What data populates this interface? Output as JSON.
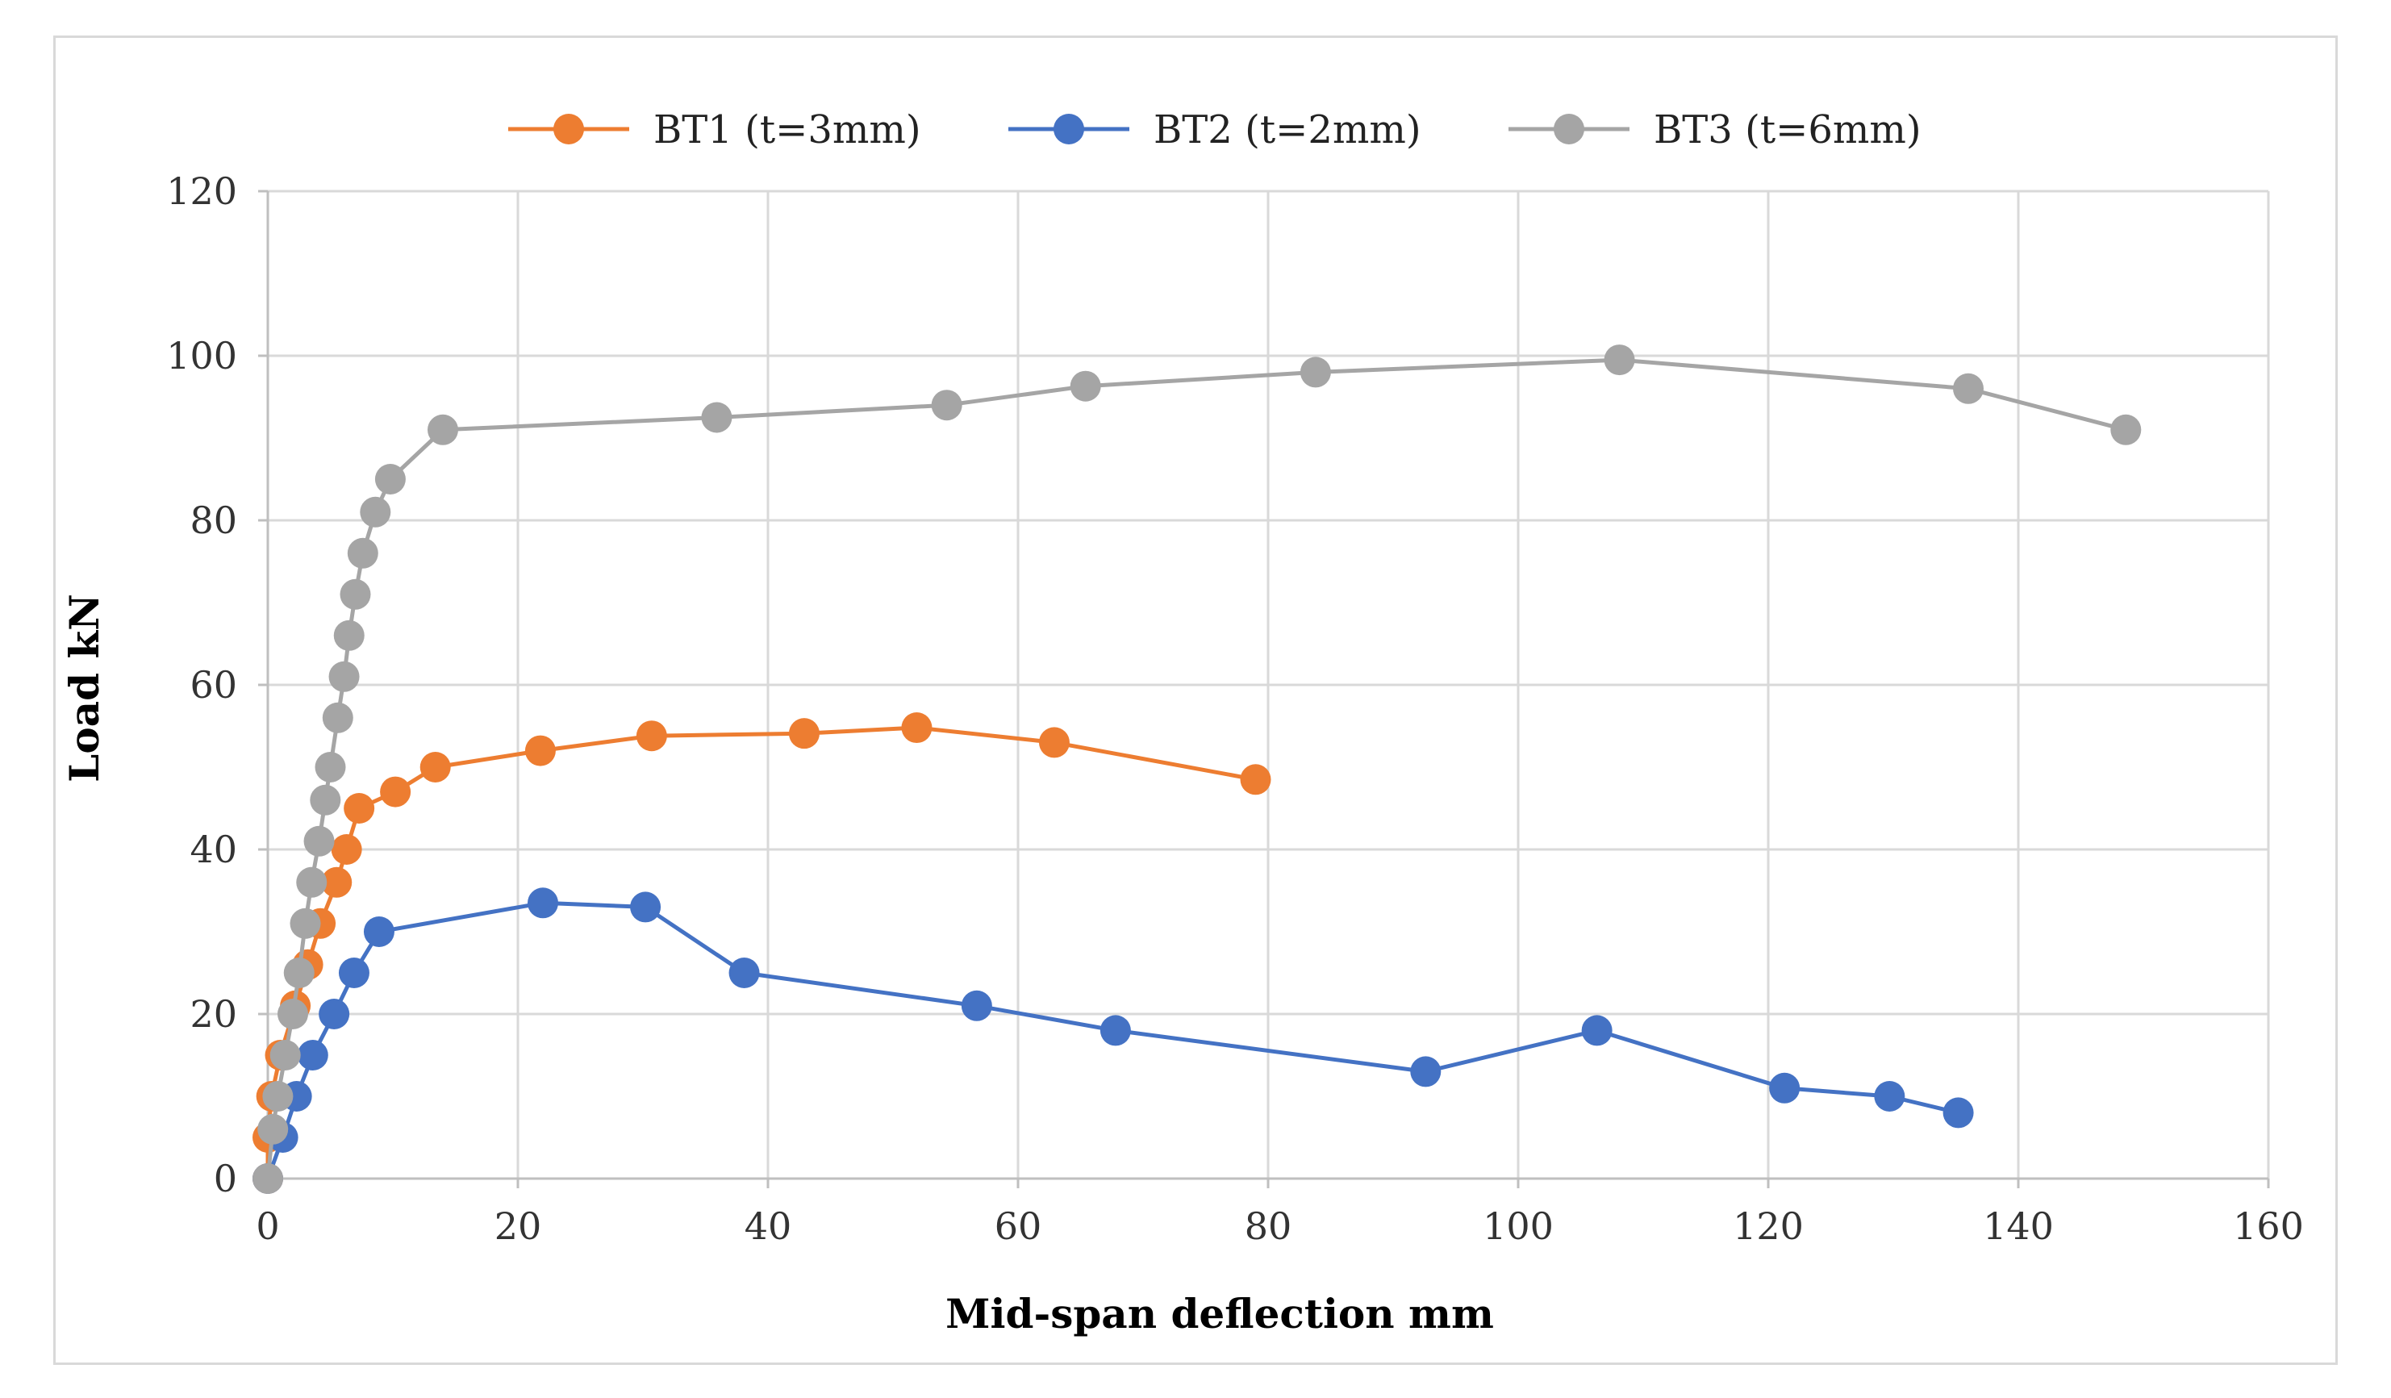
{
  "chart_data": {
    "type": "line",
    "title": "",
    "xlabel": "Mid-span deflection mm",
    "ylabel": "Load kN",
    "xlim": [
      0,
      160
    ],
    "ylim": [
      0,
      120
    ],
    "x_ticks": [
      "0",
      "20",
      "40",
      "60",
      "80",
      "100",
      "120",
      "140",
      "160"
    ],
    "y_ticks": [
      "0",
      "20",
      "40",
      "60",
      "80",
      "100",
      "120"
    ],
    "grid": true,
    "legend_position": "top",
    "series": [
      {
        "name": "BT1 (t=3mm)",
        "color": "#ed7d31",
        "points": [
          [
            0,
            0
          ],
          [
            0,
            5
          ],
          [
            0.3,
            10
          ],
          [
            1.0,
            15
          ],
          [
            2.2,
            21
          ],
          [
            3.2,
            26
          ],
          [
            4.2,
            31
          ],
          [
            5.5,
            36
          ],
          [
            6.3,
            40
          ],
          [
            7.3,
            45
          ],
          [
            10.2,
            47
          ],
          [
            13.4,
            50
          ],
          [
            21.8,
            52
          ],
          [
            30.7,
            53.8
          ],
          [
            42.9,
            54.1
          ],
          [
            51.9,
            54.8
          ],
          [
            62.9,
            53
          ],
          [
            79.0,
            48.5
          ]
        ]
      },
      {
        "name": "BT2 (t=2mm)",
        "color": "#4472c4",
        "points": [
          [
            0,
            0
          ],
          [
            1.2,
            5
          ],
          [
            2.3,
            10
          ],
          [
            3.6,
            15
          ],
          [
            5.3,
            20
          ],
          [
            6.9,
            25
          ],
          [
            8.9,
            30
          ],
          [
            22.0,
            33.5
          ],
          [
            30.2,
            33
          ],
          [
            38.1,
            25
          ],
          [
            56.7,
            21
          ],
          [
            67.8,
            18
          ],
          [
            92.6,
            13
          ],
          [
            106.3,
            18
          ],
          [
            121.3,
            11
          ],
          [
            129.7,
            10
          ],
          [
            135.2,
            8
          ]
        ]
      },
      {
        "name": "BT3 (t=6mm)",
        "color": "#a5a5a5",
        "points": [
          [
            0,
            0
          ],
          [
            0.4,
            6
          ],
          [
            0.8,
            10
          ],
          [
            1.4,
            15
          ],
          [
            2.0,
            20
          ],
          [
            2.5,
            25
          ],
          [
            3.0,
            31
          ],
          [
            3.5,
            36
          ],
          [
            4.1,
            41
          ],
          [
            4.6,
            46
          ],
          [
            5.0,
            50
          ],
          [
            5.6,
            56
          ],
          [
            6.1,
            61
          ],
          [
            6.5,
            66
          ],
          [
            7.0,
            71
          ],
          [
            7.6,
            76
          ],
          [
            8.6,
            81
          ],
          [
            9.8,
            85
          ],
          [
            14.0,
            91
          ],
          [
            35.9,
            92.5
          ],
          [
            54.3,
            94
          ],
          [
            65.4,
            96.3
          ],
          [
            83.8,
            98
          ],
          [
            108.1,
            99.5
          ],
          [
            136.0,
            96
          ],
          [
            148.6,
            91
          ]
        ]
      }
    ]
  }
}
